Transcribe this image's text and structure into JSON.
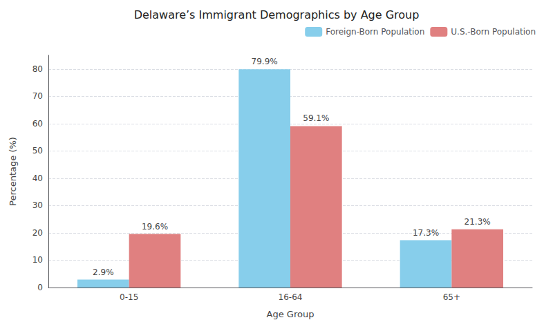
{
  "chart_data": {
    "type": "bar",
    "title": "Delaware’s Immigrant Demographics by Age Group",
    "xlabel": "Age Group",
    "ylabel": "Percentage (%)",
    "categories": [
      "0-15",
      "16-64",
      "65+"
    ],
    "series": [
      {
        "name": "Foreign-Born Population",
        "color": "#87CEEB",
        "values": [
          2.9,
          79.9,
          17.3
        ],
        "value_labels": [
          "2.9%",
          "79.9%",
          "17.3%"
        ]
      },
      {
        "name": "U.S.-Born Population",
        "color": "#E08080",
        "values": [
          19.6,
          59.1,
          21.3
        ],
        "value_labels": [
          "19.6%",
          "59.1%",
          "21.3%"
        ]
      }
    ],
    "ylim": [
      0,
      85
    ],
    "yticks": [
      0,
      10,
      20,
      30,
      40,
      50,
      60,
      70,
      80
    ],
    "grid": true,
    "legend": "upper right"
  }
}
